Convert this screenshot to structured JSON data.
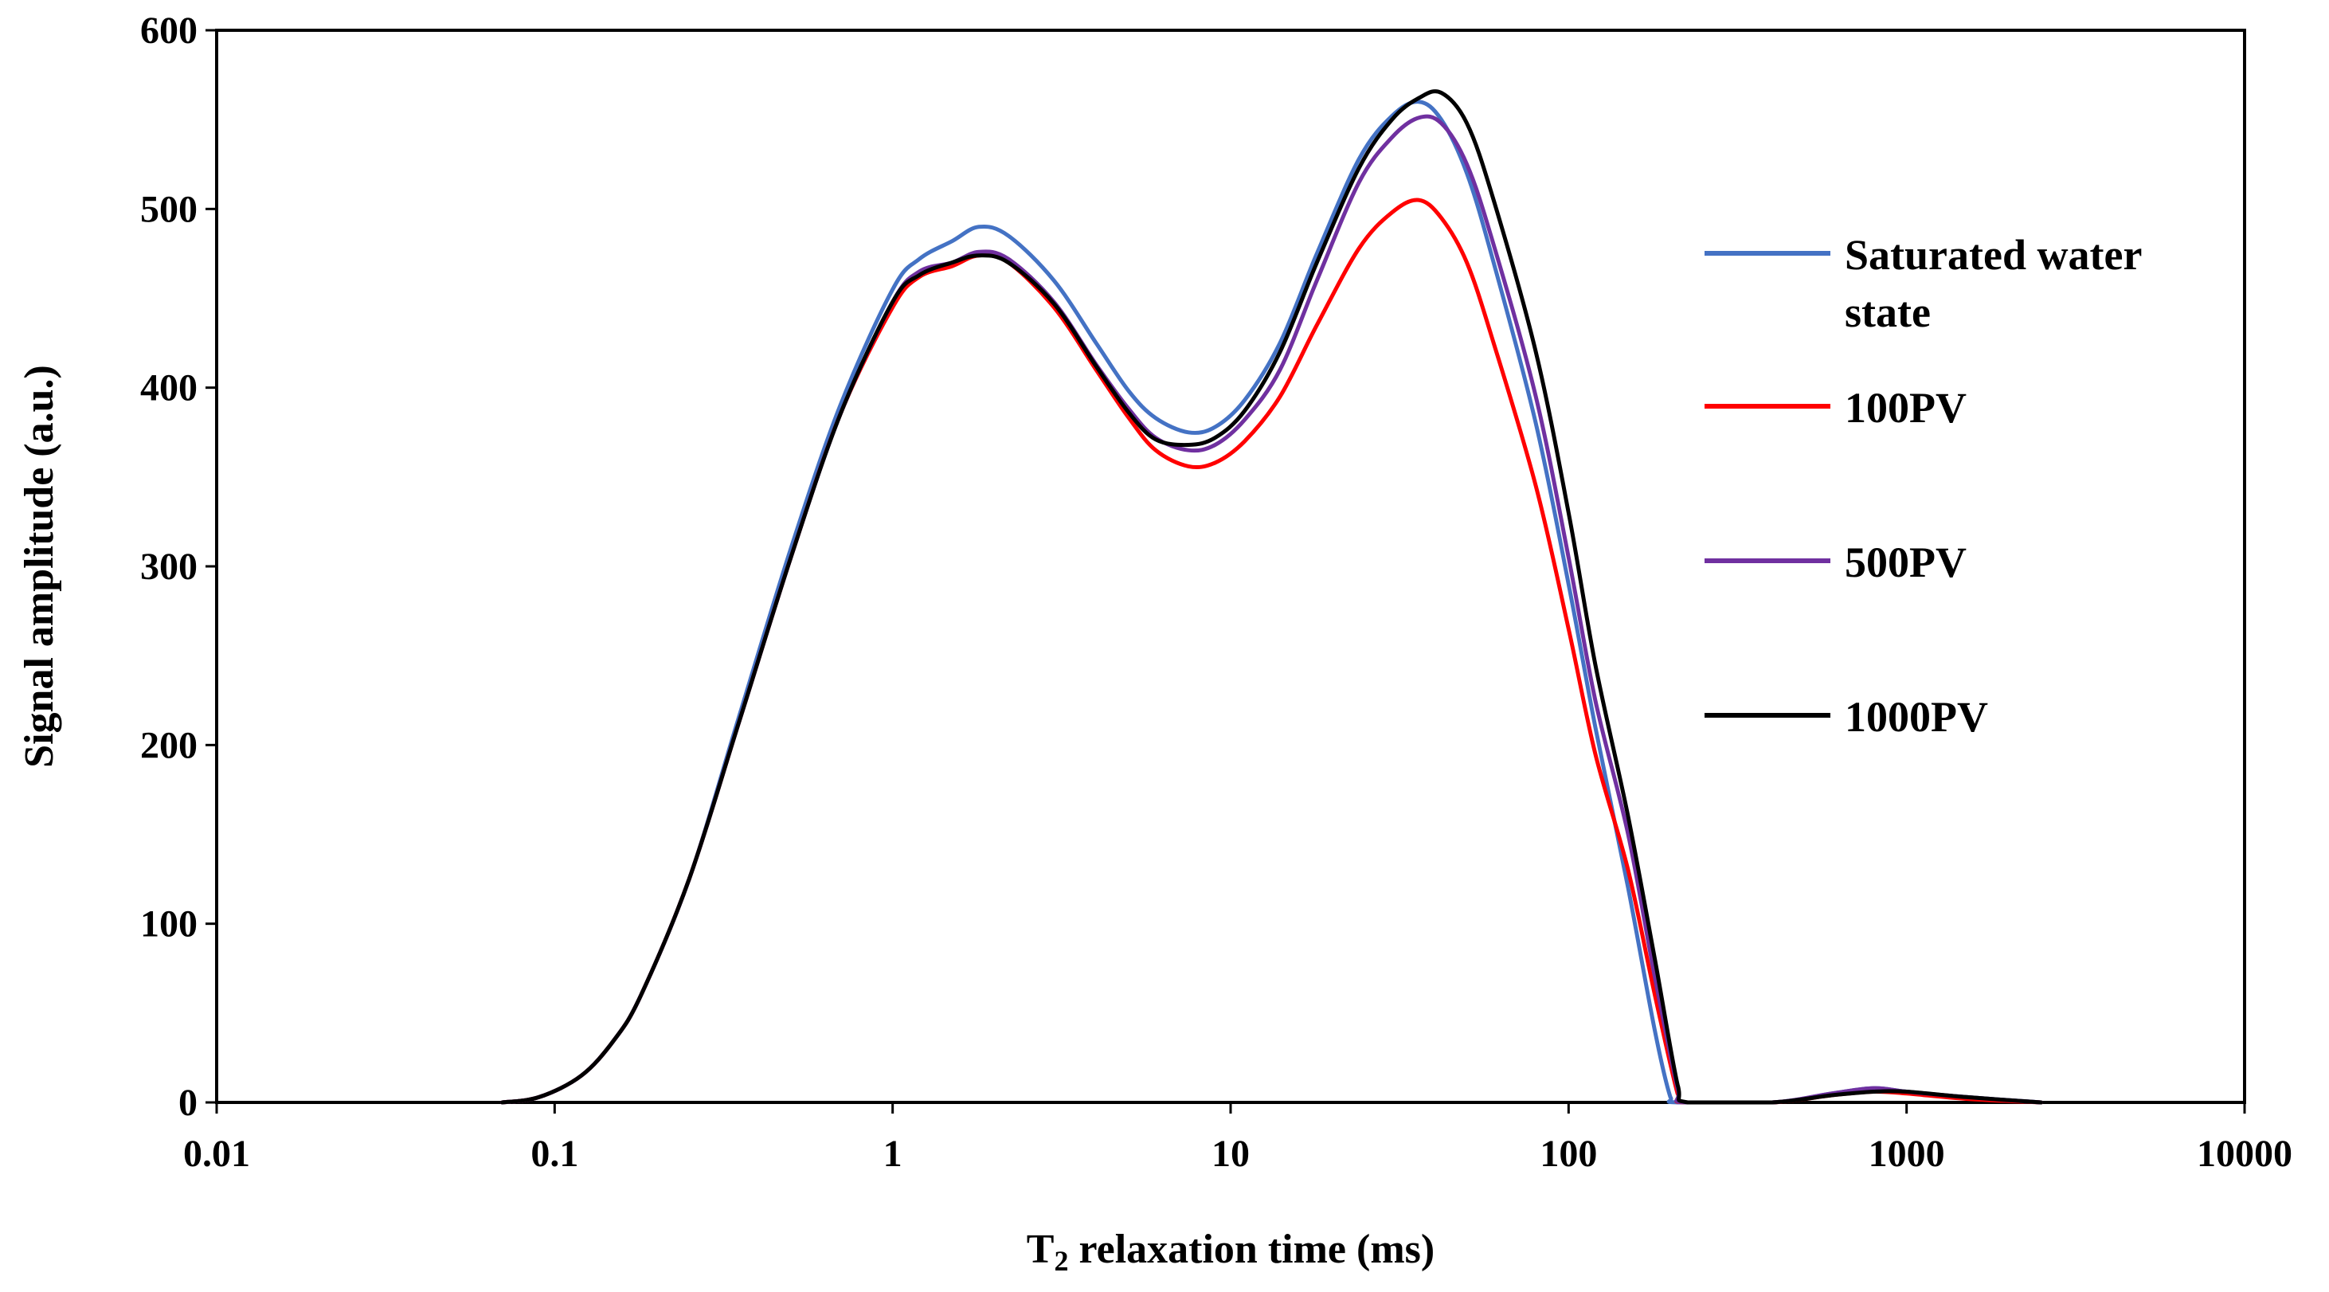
{
  "chart_data": {
    "type": "line",
    "title": "",
    "xlabel_main": "T",
    "xlabel_sub": "2",
    "xlabel_rest": " relaxation time (ms)",
    "ylabel": "Signal amplitude (a.u.)",
    "xscale": "log",
    "xlim": [
      0.01,
      10000
    ],
    "ylim": [
      0,
      600
    ],
    "x_ticks": [
      0.01,
      0.1,
      1,
      10,
      100,
      1000,
      10000
    ],
    "x_tick_labels": [
      "0.01",
      "0.1",
      "1",
      "10",
      "100",
      "1000",
      "10000"
    ],
    "y_ticks": [
      0,
      100,
      200,
      300,
      400,
      500,
      600
    ],
    "y_tick_labels": [
      "0",
      "100",
      "200",
      "300",
      "400",
      "500",
      "600"
    ],
    "grid": false,
    "legend_position": "right",
    "series": [
      {
        "name": "Saturated water state",
        "legend_line1": "Saturated water",
        "legend_line2": "state",
        "color": "#4472C4",
        "points": [
          [
            0.07,
            0
          ],
          [
            0.09,
            3
          ],
          [
            0.12,
            15
          ],
          [
            0.15,
            35
          ],
          [
            0.18,
            60
          ],
          [
            0.25,
            125
          ],
          [
            0.35,
            215
          ],
          [
            0.5,
            310
          ],
          [
            0.7,
            390
          ],
          [
            1.0,
            455
          ],
          [
            1.2,
            472
          ],
          [
            1.5,
            482
          ],
          [
            1.8,
            490
          ],
          [
            2.2,
            485
          ],
          [
            3.0,
            460
          ],
          [
            4.0,
            425
          ],
          [
            5.0,
            398
          ],
          [
            6.0,
            383
          ],
          [
            7.5,
            375
          ],
          [
            9.0,
            378
          ],
          [
            11,
            393
          ],
          [
            14,
            425
          ],
          [
            18,
            475
          ],
          [
            24,
            528
          ],
          [
            30,
            552
          ],
          [
            36,
            560
          ],
          [
            42,
            550
          ],
          [
            50,
            520
          ],
          [
            60,
            470
          ],
          [
            80,
            380
          ],
          [
            100,
            290
          ],
          [
            120,
            210
          ],
          [
            150,
            120
          ],
          [
            180,
            40
          ],
          [
            200,
            3
          ],
          [
            210,
            0
          ],
          [
            400,
            0
          ],
          [
            600,
            5
          ],
          [
            800,
            8
          ],
          [
            1000,
            6
          ],
          [
            1500,
            3
          ],
          [
            2500,
            0
          ]
        ]
      },
      {
        "name": "100PV",
        "legend_line1": "100PV",
        "color": "#FF0000",
        "points": [
          [
            0.07,
            0
          ],
          [
            0.09,
            3
          ],
          [
            0.12,
            15
          ],
          [
            0.15,
            35
          ],
          [
            0.18,
            60
          ],
          [
            0.25,
            125
          ],
          [
            0.35,
            212
          ],
          [
            0.5,
            305
          ],
          [
            0.7,
            385
          ],
          [
            1.0,
            445
          ],
          [
            1.2,
            462
          ],
          [
            1.5,
            468
          ],
          [
            1.8,
            474
          ],
          [
            2.2,
            470
          ],
          [
            3.0,
            445
          ],
          [
            4.0,
            410
          ],
          [
            5.0,
            383
          ],
          [
            6.0,
            365
          ],
          [
            7.5,
            356
          ],
          [
            9.0,
            358
          ],
          [
            11,
            370
          ],
          [
            14,
            395
          ],
          [
            18,
            435
          ],
          [
            24,
            478
          ],
          [
            30,
            498
          ],
          [
            36,
            505
          ],
          [
            42,
            495
          ],
          [
            50,
            470
          ],
          [
            60,
            425
          ],
          [
            80,
            345
          ],
          [
            100,
            265
          ],
          [
            120,
            195
          ],
          [
            150,
            130
          ],
          [
            180,
            60
          ],
          [
            210,
            5
          ],
          [
            220,
            0
          ],
          [
            400,
            0
          ],
          [
            600,
            4
          ],
          [
            800,
            6
          ],
          [
            1000,
            5
          ],
          [
            1500,
            2
          ],
          [
            2500,
            0
          ]
        ]
      },
      {
        "name": "500PV",
        "legend_line1": "500PV",
        "color": "#7030A0",
        "points": [
          [
            0.07,
            0
          ],
          [
            0.09,
            3
          ],
          [
            0.12,
            15
          ],
          [
            0.15,
            35
          ],
          [
            0.18,
            60
          ],
          [
            0.25,
            125
          ],
          [
            0.35,
            212
          ],
          [
            0.5,
            305
          ],
          [
            0.7,
            385
          ],
          [
            1.0,
            448
          ],
          [
            1.2,
            465
          ],
          [
            1.5,
            470
          ],
          [
            1.8,
            476
          ],
          [
            2.2,
            472
          ],
          [
            3.0,
            448
          ],
          [
            4.0,
            413
          ],
          [
            5.0,
            388
          ],
          [
            6.0,
            372
          ],
          [
            7.5,
            365
          ],
          [
            9.0,
            368
          ],
          [
            11,
            382
          ],
          [
            14,
            410
          ],
          [
            18,
            460
          ],
          [
            24,
            515
          ],
          [
            30,
            540
          ],
          [
            36,
            551
          ],
          [
            42,
            548
          ],
          [
            50,
            525
          ],
          [
            60,
            480
          ],
          [
            80,
            395
          ],
          [
            100,
            305
          ],
          [
            120,
            225
          ],
          [
            150,
            150
          ],
          [
            180,
            70
          ],
          [
            210,
            8
          ],
          [
            220,
            0
          ],
          [
            400,
            0
          ],
          [
            600,
            5
          ],
          [
            800,
            8
          ],
          [
            1000,
            6
          ],
          [
            1500,
            3
          ],
          [
            2500,
            0
          ]
        ]
      },
      {
        "name": "1000PV",
        "legend_line1": "1000PV",
        "color": "#000000",
        "points": [
          [
            0.07,
            0
          ],
          [
            0.09,
            3
          ],
          [
            0.12,
            15
          ],
          [
            0.15,
            35
          ],
          [
            0.18,
            60
          ],
          [
            0.25,
            125
          ],
          [
            0.35,
            212
          ],
          [
            0.5,
            305
          ],
          [
            0.7,
            385
          ],
          [
            1.0,
            448
          ],
          [
            1.2,
            463
          ],
          [
            1.5,
            470
          ],
          [
            1.8,
            474
          ],
          [
            2.2,
            470
          ],
          [
            3.0,
            447
          ],
          [
            4.0,
            412
          ],
          [
            5.0,
            386
          ],
          [
            6.0,
            371
          ],
          [
            7.5,
            368
          ],
          [
            9.0,
            372
          ],
          [
            11,
            387
          ],
          [
            14,
            420
          ],
          [
            18,
            470
          ],
          [
            24,
            523
          ],
          [
            30,
            550
          ],
          [
            36,
            562
          ],
          [
            42,
            565
          ],
          [
            50,
            548
          ],
          [
            60,
            505
          ],
          [
            80,
            420
          ],
          [
            100,
            330
          ],
          [
            120,
            245
          ],
          [
            150,
            160
          ],
          [
            180,
            80
          ],
          [
            210,
            10
          ],
          [
            225,
            0
          ],
          [
            400,
            0
          ],
          [
            600,
            4
          ],
          [
            800,
            6
          ],
          [
            1000,
            6
          ],
          [
            1500,
            3
          ],
          [
            2500,
            0
          ]
        ]
      }
    ]
  }
}
